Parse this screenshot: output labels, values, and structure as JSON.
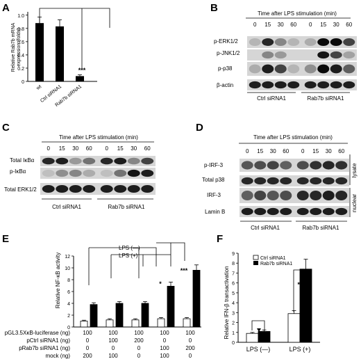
{
  "panels": {
    "A": {
      "letter": "A",
      "ylabel": "Relative Rab7b mRNA expression (folds)",
      "ylabel_line1": "Relative Rab7b mRNA",
      "ylabel_line2": "expression (folds)",
      "sig": "***"
    },
    "B": {
      "letter": "B",
      "header": "Time after LPS stimulation (min)",
      "times": [
        "0",
        "15",
        "30",
        "60",
        "0",
        "15",
        "30",
        "60"
      ],
      "rows": [
        "p-ERK1/2",
        "p-JNK1/2",
        "p-p38",
        "β-actin"
      ],
      "groups": [
        "Ctrl siRNA1",
        "Rab7b siRNA1"
      ]
    },
    "C": {
      "letter": "C",
      "header": "Time after LPS stimulation (min)",
      "times": [
        "0",
        "15",
        "30",
        "60",
        "0",
        "15",
        "30",
        "60"
      ],
      "rows": [
        "Total IκBα",
        "p-IκBα",
        "Total ERK1/2"
      ],
      "groups": [
        "Ctrl siRNA1",
        "Rab7b siRNA1"
      ]
    },
    "D": {
      "letter": "D",
      "header": "Time after LPS stimulation (min)",
      "times": [
        "0",
        "15",
        "30",
        "60",
        "0",
        "15",
        "30",
        "60"
      ],
      "rows": [
        "p-IRF-3",
        "Total p38",
        "IRF-3",
        "Lamin B"
      ],
      "side": [
        "lysate",
        "nuclear"
      ],
      "groups": [
        "Ctrl siRNA1",
        "Rab7b siRNA1"
      ]
    },
    "E": {
      "letter": "E",
      "ylabel": "Relative NF-κB activity",
      "legend": [
        "LPS (—)",
        "LPS (+)"
      ],
      "sig": [
        "*",
        "***"
      ],
      "table_rows": [
        {
          "label": "pGL3.5XκB-luciferase (ng)",
          "vals": [
            "100",
            "100",
            "100",
            "100",
            "100"
          ]
        },
        {
          "label": "pCtrl siRNA1 (ng)",
          "vals": [
            "0",
            "100",
            "200",
            "0",
            "0"
          ]
        },
        {
          "label": "pRab7b siRNA1 (ng)",
          "vals": [
            "0",
            "0",
            "0",
            "100",
            "200"
          ]
        },
        {
          "label": "mock (ng)",
          "vals": [
            "200",
            "100",
            "0",
            "100",
            "0"
          ]
        }
      ]
    },
    "F": {
      "letter": "F",
      "ylabel": "Relative IFN-β transactivation",
      "legend": [
        "Ctrl siRNA1",
        "Rab7b siRNA1"
      ],
      "sig": "**",
      "xlabels": [
        "LPS (—)",
        "LPS (+)"
      ]
    }
  },
  "chart_data": [
    {
      "panel": "A",
      "type": "bar",
      "categories": [
        "wt",
        "Ctrl siRNA1",
        "Rab7b siRNA1"
      ],
      "values": [
        0.88,
        0.83,
        0.08
      ],
      "errors": [
        0.09,
        0.1,
        0.02
      ],
      "ylabel": "Relative Rab7b mRNA expression (folds)",
      "yticks": [
        "0",
        "0.2",
        "0.4",
        "0.6",
        "0.8",
        "1.0"
      ],
      "ylim": [
        0,
        1.05
      ]
    },
    {
      "panel": "E",
      "type": "bar",
      "categories": [
        "1",
        "2",
        "3",
        "4",
        "5"
      ],
      "series": [
        {
          "name": "LPS (—)",
          "values": [
            1.0,
            1.2,
            1.2,
            1.4,
            1.4
          ],
          "errors": [
            0.15,
            0.2,
            0.2,
            0.2,
            0.2
          ]
        },
        {
          "name": "LPS (+)",
          "values": [
            3.8,
            4.0,
            4.0,
            6.9,
            9.6
          ],
          "errors": [
            0.3,
            0.3,
            0.3,
            0.7,
            0.9
          ]
        }
      ],
      "ylabel": "Relative NF-κB activity",
      "yticks": [
        "0",
        "2",
        "4",
        "6",
        "8",
        "10",
        "12"
      ],
      "ylim": [
        0,
        12
      ]
    },
    {
      "panel": "F",
      "type": "bar",
      "categories": [
        "LPS (—)",
        "LPS (+)"
      ],
      "series": [
        {
          "name": "Ctrl siRNA1",
          "values": [
            0.9,
            2.9
          ],
          "errors": [
            0.1,
            0.3
          ]
        },
        {
          "name": "Rab7b siRNA1",
          "values": [
            1.1,
            7.4
          ],
          "errors": [
            0.15,
            1.0
          ]
        }
      ],
      "ylabel": "Relative IFN-β transactivation",
      "yticks": [
        "0",
        "1",
        "2",
        "3",
        "4",
        "5",
        "6",
        "7",
        "8",
        "9"
      ],
      "ylim": [
        0,
        9
      ]
    }
  ]
}
